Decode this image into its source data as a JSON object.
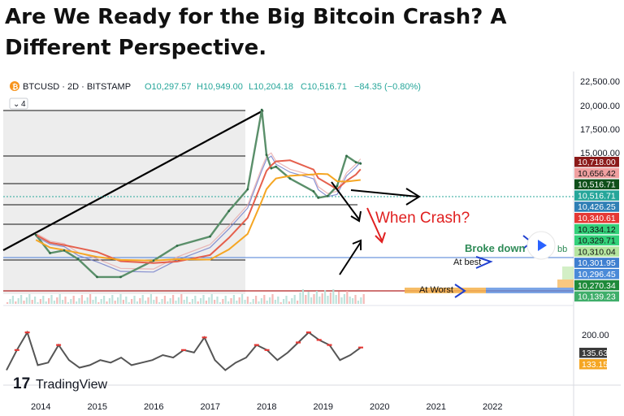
{
  "page": {
    "headline": "Are We Ready for the Big Bitcoin Crash? A Different Perspective."
  },
  "chart_data": [
    {
      "type": "line",
      "symbol_line": {
        "symbol": "BTCUSD · 2D · BITSTAMP",
        "open": "O10,297.57",
        "high": "H10,949.00",
        "low": "L10,204.18",
        "close": "C10,516.71",
        "change": "−84.35 (−0.80%)"
      },
      "indicator_count": "4",
      "x_ticks": [
        "2014",
        "2015",
        "2016",
        "2017",
        "2018",
        "2019",
        "2020",
        "2021",
        "2022"
      ],
      "y_ticks": [
        "22,500.00",
        "20,000.00",
        "17,500.00",
        "15,000.00"
      ],
      "ylim": [
        0,
        23000
      ],
      "series": [
        {
          "x": [
            "2013-12",
            "2014-03",
            "2014-06",
            "2014-09",
            "2015-01",
            "2015-06",
            "2016-01",
            "2016-06",
            "2017-01",
            "2017-05",
            "2017-09",
            "2017-12",
            "2018-01",
            "2018-02",
            "2018-03",
            "2018-06",
            "2018-11",
            "2018-12",
            "2019-02",
            "2019-04",
            "2019-06",
            "2019-08",
            "2019-09"
          ],
          "y": [
            1000,
            550,
            600,
            450,
            250,
            250,
            430,
            700,
            950,
            2200,
            4500,
            19500,
            14000,
            9000,
            9500,
            6400,
            4200,
            3400,
            3600,
            5000,
            13500,
            11000,
            10500
          ]
        }
      ],
      "price_labels": [
        {
          "value": "10,718.00",
          "color": "#8b1a1a"
        },
        {
          "value": "10,656.42",
          "color": "#f0a0a0"
        },
        {
          "value": "10,516.71",
          "color": "#0f4f1a"
        },
        {
          "value": "10,516.71",
          "color": "#26a69a"
        },
        {
          "value": "10,426.25",
          "color": "#2f7fb5"
        },
        {
          "value": "10,340.61",
          "color": "#e53935"
        },
        {
          "value": "10,334.12",
          "color": "#33d17a"
        },
        {
          "value": "10,329.71",
          "color": "#33d17a"
        },
        {
          "value": "10,310.04",
          "color": "#b5e5a0"
        },
        {
          "value": "10,301.95",
          "color": "#3f7fd0"
        },
        {
          "value": "10,296.45",
          "color": "#4a8ad8"
        },
        {
          "value": "10,270.34",
          "color": "#1e8a3a"
        },
        {
          "value": "10,139.23",
          "color": "#3fae6a"
        }
      ],
      "annotations": {
        "when_crash": "When Crash?",
        "broke_down": "Broke down",
        "broke_down_suffix": "bb",
        "at_best": "At best",
        "at_worst": "At Worst"
      },
      "watermark": "TradingView",
      "colors": {
        "up": "#26a69a",
        "down": "#ef5350",
        "annotation_red": "#e02020",
        "annotation_blue": "#1f3fd0",
        "broke_down_text": "#2e8b57"
      }
    },
    {
      "type": "line",
      "y_ticks": [
        "200.00"
      ],
      "price_labels": [
        {
          "value": "135.63",
          "color": "#3b3b3b"
        },
        {
          "value": "133.15",
          "color": "#f5a623"
        }
      ]
    }
  ]
}
